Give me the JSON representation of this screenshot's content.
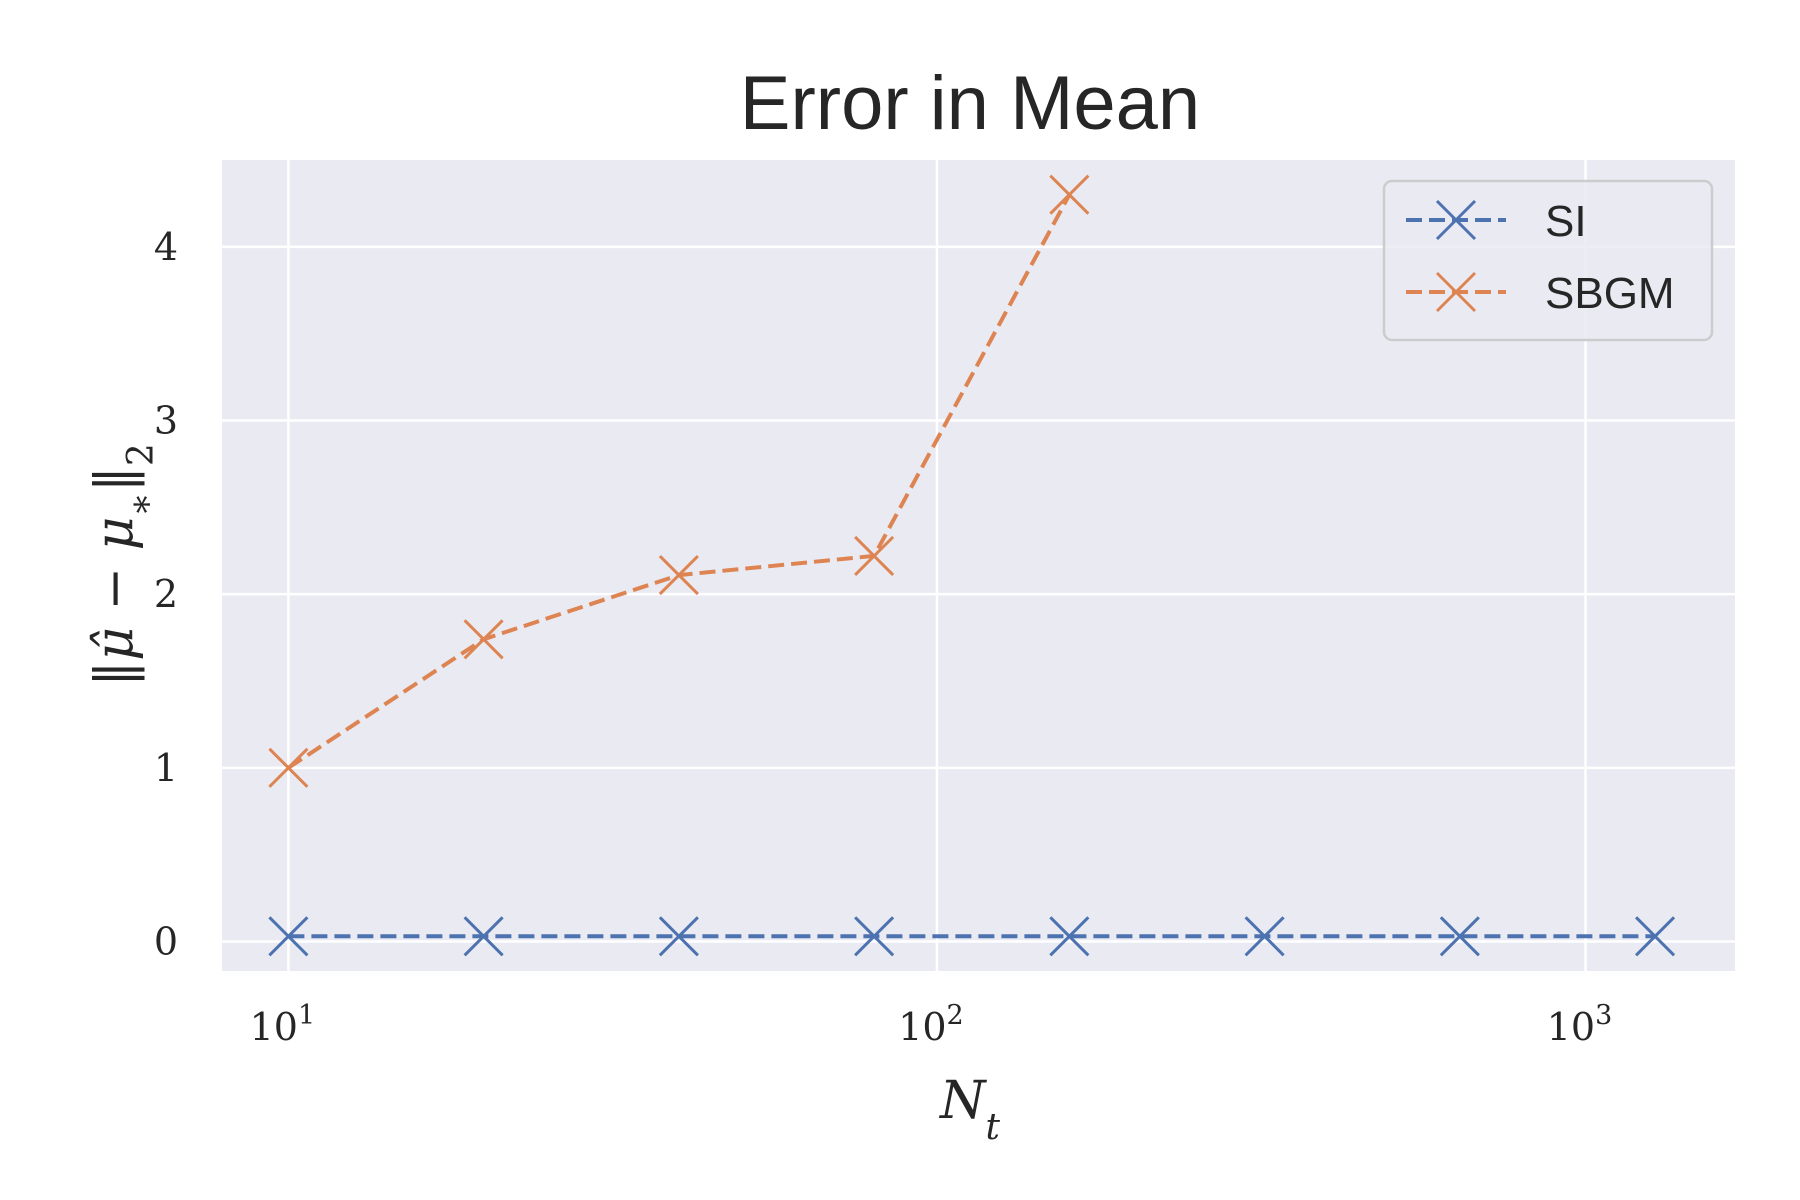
{
  "chart_data": {
    "type": "line",
    "title": "Error in Mean",
    "xlabel": "N_t",
    "ylabel": "||μ̂ − μ*||₂",
    "xscale": "log",
    "xlim": [
      7.9,
      1700
    ],
    "ylim": [
      -0.17,
      4.5
    ],
    "x_ticks": [
      {
        "value": 10,
        "base": "10",
        "exp": "1"
      },
      {
        "value": 100,
        "base": "10",
        "exp": "2"
      },
      {
        "value": 1000,
        "base": "10",
        "exp": "3"
      }
    ],
    "y_ticks": [
      {
        "value": 0,
        "label": "0"
      },
      {
        "value": 1,
        "label": "1"
      },
      {
        "value": 2,
        "label": "2"
      },
      {
        "value": 3,
        "label": "3"
      },
      {
        "value": 4,
        "label": "4"
      }
    ],
    "grid": true,
    "legend_position": "top-right",
    "series": [
      {
        "name": "SI",
        "color": "#4c72b0",
        "marker": "x",
        "linestyle": "dashed",
        "x": [
          10,
          20,
          40,
          80,
          160,
          320,
          640,
          1280
        ],
        "y": [
          0.03,
          0.03,
          0.03,
          0.03,
          0.03,
          0.03,
          0.03,
          0.03
        ]
      },
      {
        "name": "SBGM",
        "color": "#dd8452",
        "marker": "x",
        "linestyle": "dashed",
        "x": [
          10,
          20,
          40,
          80,
          160
        ],
        "y": [
          1.0,
          1.74,
          2.11,
          2.22,
          4.3
        ]
      }
    ]
  }
}
